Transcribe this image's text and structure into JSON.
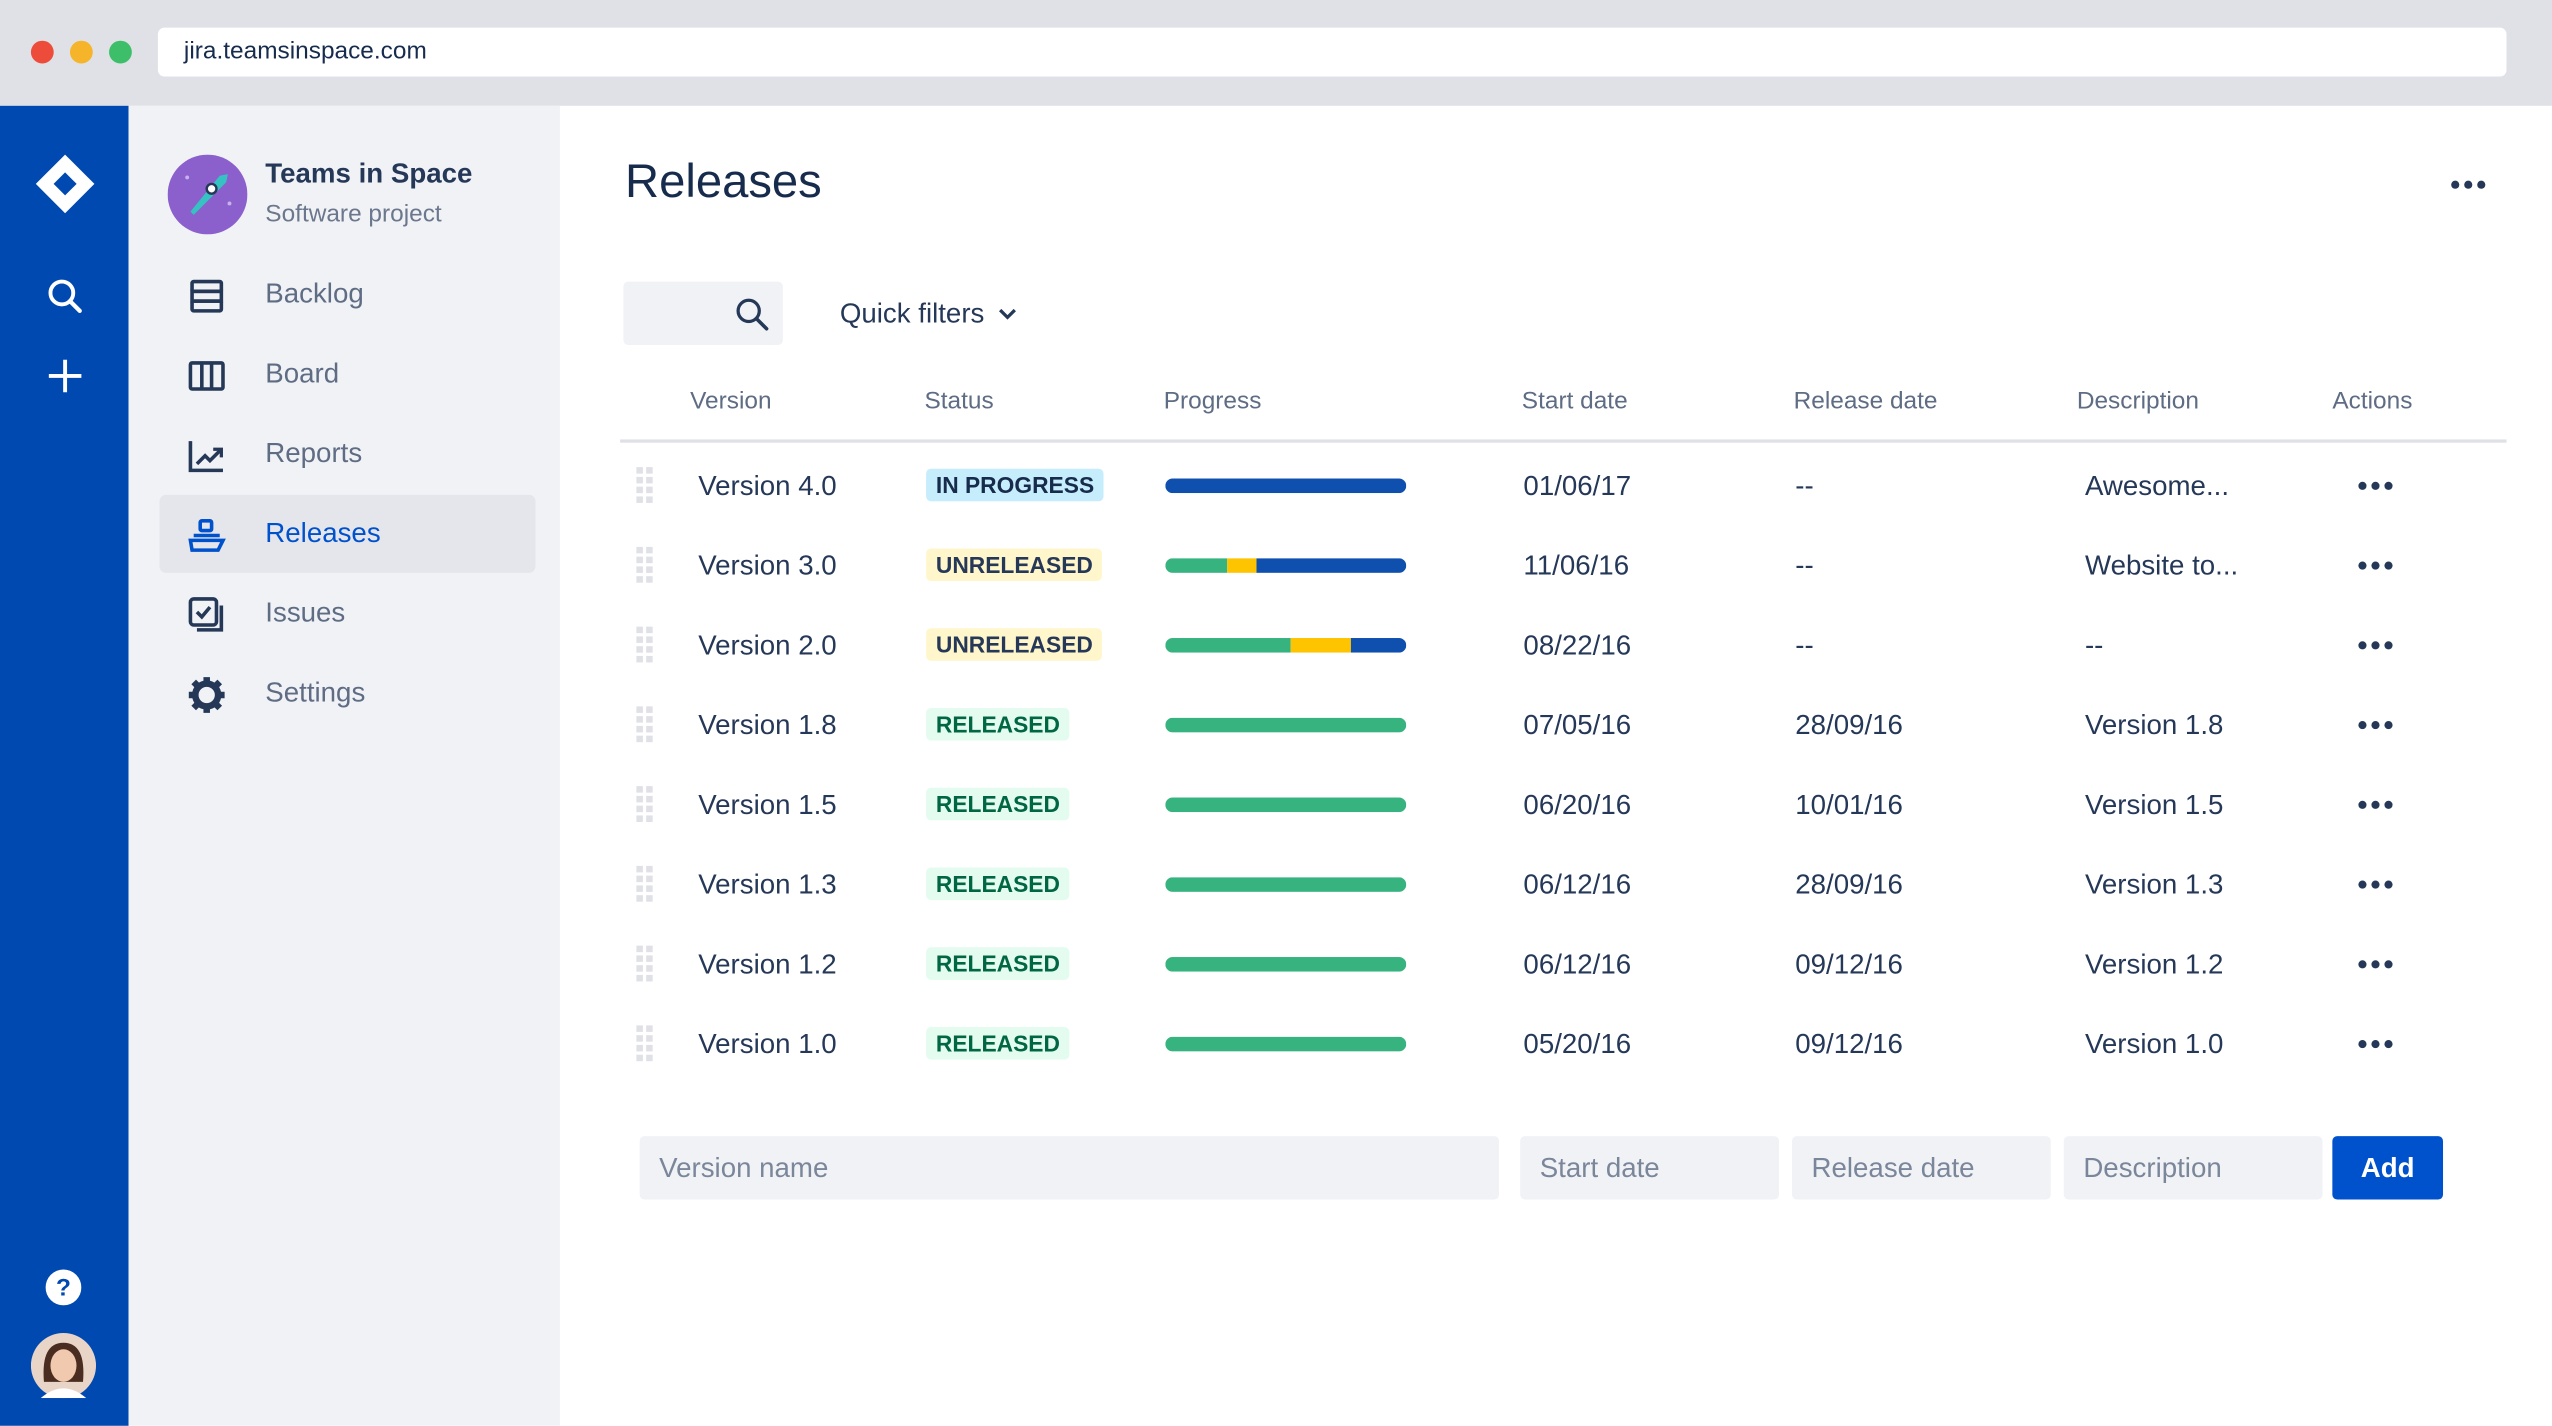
{
  "browser": {
    "url": "jira.teamsinspace.com",
    "traffic_lights": [
      "#ee4c3a",
      "#f5b42a",
      "#3dbf6a"
    ]
  },
  "project": {
    "name": "Teams in Space",
    "type": "Software project"
  },
  "sidebar": {
    "items": [
      {
        "label": "Backlog",
        "icon": "backlog-icon"
      },
      {
        "label": "Board",
        "icon": "board-icon"
      },
      {
        "label": "Reports",
        "icon": "reports-icon"
      },
      {
        "label": "Releases",
        "icon": "ship-icon",
        "selected": true
      },
      {
        "label": "Issues",
        "icon": "issues-icon"
      },
      {
        "label": "Settings",
        "icon": "gear-icon"
      }
    ]
  },
  "main": {
    "title": "Releases",
    "quick_filters": "Quick filters"
  },
  "table": {
    "headers": [
      "Version",
      "Status",
      "Progress",
      "Start date",
      "Release date",
      "Description",
      "Actions"
    ],
    "rows": [
      {
        "version": "Version 4.0",
        "status": "IN PROGRESS",
        "progress": {
          "done": 0,
          "in_progress": 0,
          "todo": 100
        },
        "start": "01/06/17",
        "release": "--",
        "description": "Awesome..."
      },
      {
        "version": "Version 3.0",
        "status": "UNRELEASED",
        "progress": {
          "done": 26,
          "in_progress": 12,
          "todo": 62
        },
        "start": "11/06/16",
        "release": "--",
        "description": "Website to..."
      },
      {
        "version": "Version 2.0",
        "status": "UNRELEASED",
        "progress": {
          "done": 52,
          "in_progress": 25,
          "todo": 23
        },
        "start": "08/22/16",
        "release": "--",
        "description": "--"
      },
      {
        "version": "Version 1.8",
        "status": "RELEASED",
        "progress": {
          "done": 100,
          "in_progress": 0,
          "todo": 0
        },
        "start": "07/05/16",
        "release": "28/09/16",
        "description": "Version 1.8"
      },
      {
        "version": "Version 1.5",
        "status": "RELEASED",
        "progress": {
          "done": 100,
          "in_progress": 0,
          "todo": 0
        },
        "start": "06/20/16",
        "release": "10/01/16",
        "description": "Version 1.5"
      },
      {
        "version": "Version 1.3",
        "status": "RELEASED",
        "progress": {
          "done": 100,
          "in_progress": 0,
          "todo": 0
        },
        "start": "06/12/16",
        "release": "28/09/16",
        "description": "Version 1.3"
      },
      {
        "version": "Version 1.2",
        "status": "RELEASED",
        "progress": {
          "done": 100,
          "in_progress": 0,
          "todo": 0
        },
        "start": "06/12/16",
        "release": "09/12/16",
        "description": "Version 1.2"
      },
      {
        "version": "Version 1.0",
        "status": "RELEASED",
        "progress": {
          "done": 100,
          "in_progress": 0,
          "todo": 0
        },
        "start": "05/20/16",
        "release": "09/12/16",
        "description": "Version 1.0"
      }
    ]
  },
  "status_colors": {
    "IN PROGRESS": {
      "bg": "#c6edfb",
      "fg": "#172b4d"
    },
    "UNRELEASED": {
      "bg": "#fff6cc",
      "fg": "#253858"
    },
    "RELEASED": {
      "bg": "#e3fcef",
      "fg": "#006644"
    }
  },
  "progress_colors": {
    "done": "#36b37e",
    "in_progress": "#ffc400",
    "todo": "#0f4fae"
  },
  "form": {
    "version_placeholder": "Version name",
    "start_placeholder": "Start date",
    "release_placeholder": "Release date",
    "description_placeholder": "Description",
    "add_label": "Add"
  },
  "colors": {
    "global_nav": "#0049b0",
    "accent": "#0052cc"
  }
}
